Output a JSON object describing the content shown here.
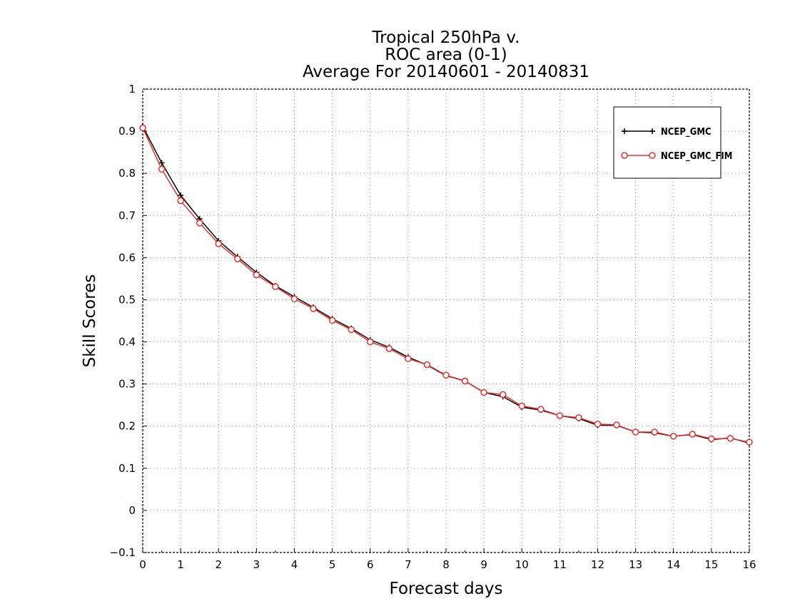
{
  "chart_data": {
    "type": "line",
    "title_lines": [
      "Tropical 250hPa v.",
      "ROC area (0-1)",
      "Average For 20140601 - 20140831"
    ],
    "xlabel": "Forecast days",
    "ylabel": "Skill Scores",
    "xlim": [
      0,
      16
    ],
    "ylim": [
      -0.1,
      1
    ],
    "xticks": [
      "0",
      "1",
      "2",
      "3",
      "4",
      "5",
      "6",
      "7",
      "8",
      "9",
      "10",
      "11",
      "12",
      "13",
      "14",
      "15",
      "16"
    ],
    "yticks": [
      "−0.1",
      "0",
      "0.1",
      "0.2",
      "0.3",
      "0.4",
      "0.5",
      "0.6",
      "0.7",
      "0.8",
      "0.9",
      "1"
    ],
    "grid": true,
    "legend_position": "top-right",
    "x": [
      0,
      0.5,
      1,
      1.5,
      2,
      2.5,
      3,
      3.5,
      4,
      4.5,
      5,
      5.5,
      6,
      6.5,
      7,
      7.5,
      8,
      8.5,
      9,
      9.5,
      10,
      10.5,
      11,
      11.5,
      12,
      12.5,
      13,
      13.5,
      14,
      14.5,
      15,
      15.5,
      16
    ],
    "series": [
      {
        "name": "NCEP_GMC",
        "color": "#000000",
        "marker": "plus",
        "values": [
          0.912,
          0.825,
          0.748,
          0.692,
          0.64,
          0.602,
          0.565,
          0.533,
          0.507,
          0.482,
          0.455,
          0.432,
          0.405,
          0.387,
          0.364,
          0.345,
          0.32,
          0.307,
          0.28,
          0.27,
          0.245,
          0.238,
          0.225,
          0.218,
          0.202,
          0.202,
          0.186,
          0.184,
          0.176,
          0.18,
          0.168,
          0.172,
          0.16
        ]
      },
      {
        "name": "NCEP_GMC_FIM",
        "color": "#e8302e",
        "marker": "circle",
        "values": [
          0.908,
          0.81,
          0.735,
          0.682,
          0.633,
          0.597,
          0.559,
          0.531,
          0.502,
          0.479,
          0.451,
          0.429,
          0.4,
          0.384,
          0.36,
          0.346,
          0.321,
          0.307,
          0.28,
          0.275,
          0.248,
          0.24,
          0.225,
          0.22,
          0.205,
          0.203,
          0.186,
          0.186,
          0.176,
          0.181,
          0.17,
          0.171,
          0.162
        ]
      }
    ]
  }
}
